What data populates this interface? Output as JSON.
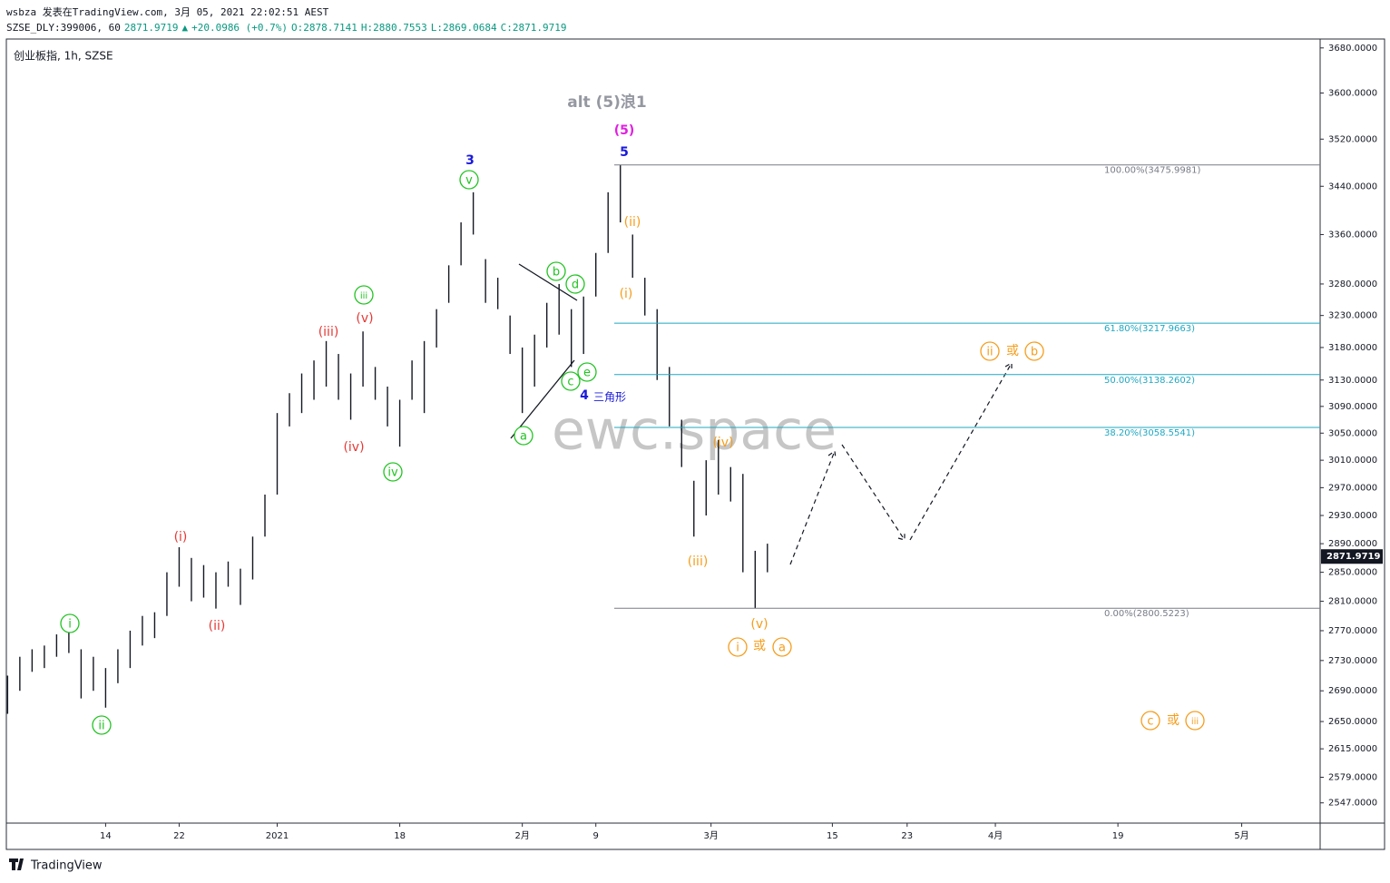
{
  "header": {
    "line1": "wsbza 发表在TradingView.com, 3月 05, 2021 22:02:51 AEST",
    "line2": [
      "SZSE_DLY:399006, 60",
      "2871.9719",
      "▲",
      "+20.0986 (+0.7%)",
      "O:2878.7141",
      "H:2880.7553",
      "L:2869.0684",
      "C:2871.9719"
    ]
  },
  "footer": {
    "brand": "TradingView"
  },
  "chart_data": {
    "type": "hilo",
    "title": "创业板指, 1h, SZSE",
    "watermark": "ewc.space",
    "color": "#131722",
    "log_scale": true,
    "x": [
      -8,
      -7,
      -6,
      -5,
      -4,
      -3,
      -2,
      -1,
      0,
      1,
      2,
      3,
      4,
      5,
      6,
      7,
      8,
      9,
      10,
      11,
      12,
      13,
      14,
      15,
      16,
      17,
      18,
      19,
      20,
      21,
      22,
      23,
      24,
      25,
      26,
      27,
      28,
      29,
      30,
      31,
      32,
      33,
      34,
      35,
      36,
      37,
      38,
      39,
      40,
      41,
      42,
      43,
      44,
      45,
      46,
      47,
      48,
      49,
      50,
      51,
      52,
      53,
      54
    ],
    "high": [
      2710,
      2735,
      2745,
      2750,
      2765,
      2768,
      2745,
      2735,
      2720,
      2745,
      2770,
      2790,
      2795,
      2850,
      2885,
      2870,
      2860,
      2850,
      2865,
      2855,
      2900,
      2960,
      3080,
      3110,
      3140,
      3160,
      3190,
      3170,
      3140,
      3205,
      3150,
      3120,
      3100,
      3160,
      3190,
      3240,
      3310,
      3380,
      3430,
      3320,
      3290,
      3230,
      3180,
      3200,
      3250,
      3280,
      3240,
      3260,
      3330,
      3430,
      3476,
      3360,
      3290,
      3240,
      3150,
      3070,
      2980,
      3010,
      3040,
      3000,
      2990,
      2880,
      2890
    ],
    "low": [
      2660,
      2690,
      2715,
      2720,
      2735,
      2740,
      2680,
      2690,
      2668,
      2700,
      2720,
      2750,
      2760,
      2790,
      2830,
      2810,
      2815,
      2800,
      2830,
      2805,
      2840,
      2900,
      2960,
      3060,
      3080,
      3100,
      3120,
      3100,
      3070,
      3120,
      3100,
      3060,
      3030,
      3100,
      3080,
      3180,
      3250,
      3310,
      3360,
      3250,
      3240,
      3170,
      3080,
      3120,
      3180,
      3200,
      3150,
      3170,
      3260,
      3330,
      3380,
      3290,
      3230,
      3130,
      3060,
      3000,
      2900,
      2930,
      2960,
      2950,
      2850,
      2800.5223,
      2850
    ],
    "last_price": 2871.9719,
    "xlim": [
      -8.1,
      99.1
    ],
    "xticks": [
      {
        "value": 0,
        "label": "14"
      },
      {
        "value": 6,
        "label": "22"
      },
      {
        "value": 14,
        "label": "2021"
      },
      {
        "value": 24,
        "label": "18"
      },
      {
        "value": 34,
        "label": "2月"
      },
      {
        "value": 40,
        "label": "9"
      },
      {
        "value": 49.4,
        "label": "3月"
      },
      {
        "value": 59.3,
        "label": "15"
      },
      {
        "value": 65.4,
        "label": "23"
      },
      {
        "value": 72.6,
        "label": "4月"
      },
      {
        "value": 82.6,
        "label": "19"
      },
      {
        "value": 92.7,
        "label": "5月"
      }
    ],
    "ylim": [
      2522,
      3696
    ],
    "yticks": [
      {
        "value": 3680,
        "label": "3680.0000"
      },
      {
        "value": 3600,
        "label": "3600.0000"
      },
      {
        "value": 3520,
        "label": "3520.0000"
      },
      {
        "value": 3440,
        "label": "3440.0000"
      },
      {
        "value": 3360,
        "label": "3360.0000"
      },
      {
        "value": 3280,
        "label": "3280.0000"
      },
      {
        "value": 3230,
        "label": "3230.0000"
      },
      {
        "value": 3180,
        "label": "3180.0000"
      },
      {
        "value": 3130,
        "label": "3130.0000"
      },
      {
        "value": 3090,
        "label": "3090.0000"
      },
      {
        "value": 3050,
        "label": "3050.0000"
      },
      {
        "value": 3010,
        "label": "3010.0000"
      },
      {
        "value": 2970,
        "label": "2970.0000"
      },
      {
        "value": 2930,
        "label": "2930.0000"
      },
      {
        "value": 2890,
        "label": "2890.0000"
      },
      {
        "value": 2850,
        "label": "2850.0000"
      },
      {
        "value": 2810,
        "label": "2810.0000"
      },
      {
        "value": 2770,
        "label": "2770.0000"
      },
      {
        "value": 2730,
        "label": "2730.0000"
      },
      {
        "value": 2690,
        "label": "2690.0000"
      },
      {
        "value": 2650,
        "label": "2650.0000"
      },
      {
        "value": 2615,
        "label": "2615.0000"
      },
      {
        "value": 2579,
        "label": "2579.0000"
      },
      {
        "value": 2547,
        "label": "2547.0000"
      }
    ],
    "fib_levels": [
      {
        "value": 3475.9981,
        "label": "100.00%(3475.9981)",
        "color": "#787b86"
      },
      {
        "value": 3217.9663,
        "label": "61.80%(3217.9663)",
        "color": "#1fa8c2"
      },
      {
        "value": 3138.2602,
        "label": "50.00%(3138.2602)",
        "color": "#1fa8c2"
      },
      {
        "value": 3058.5541,
        "label": "38.20%(3058.5541)",
        "color": "#1fa8c2"
      },
      {
        "value": 2800.5223,
        "label": "0.00%(2800.5223)",
        "color": "#787b86"
      }
    ],
    "annotations": [
      {
        "text": "(i)",
        "color": "#e53935",
        "circled": false
      },
      {
        "text": "(ii)",
        "color": "#e53935",
        "circled": false
      },
      {
        "text": "(iii)",
        "color": "#e53935",
        "circled": false
      },
      {
        "text": "(iv)",
        "color": "#e53935",
        "circled": false
      },
      {
        "text": "(v)",
        "color": "#e53935",
        "circled": false
      },
      {
        "text": "i",
        "color": "#22c322",
        "circled": true
      },
      {
        "text": "ii",
        "color": "#22c322",
        "circled": true
      },
      {
        "text": "iii",
        "color": "#22c322",
        "circled": true
      },
      {
        "text": "iv",
        "color": "#22c322",
        "circled": true
      },
      {
        "text": "v",
        "color": "#22c322",
        "circled": true
      },
      {
        "text": "a",
        "color": "#22c322",
        "circled": true
      },
      {
        "text": "b",
        "color": "#22c322",
        "circled": true
      },
      {
        "text": "c",
        "color": "#22c322",
        "circled": true
      },
      {
        "text": "d",
        "color": "#22c322",
        "circled": true
      },
      {
        "text": "e",
        "color": "#22c322",
        "circled": true
      },
      {
        "text": "3",
        "color": "#1a1adb",
        "circled": false
      },
      {
        "text": "5",
        "color": "#1a1adb",
        "circled": false
      },
      {
        "text": "4",
        "color": "#1a1adb",
        "circled": false
      },
      {
        "text": "三角形",
        "color": "#1a1adb",
        "circled": false
      },
      {
        "text": "(5)",
        "color": "#e020e0",
        "circled": false
      },
      {
        "text": "alt (5)浪1",
        "color": "#9598a1",
        "circled": false
      },
      {
        "text": "(ii)",
        "color": "#f59d1b",
        "circled": false
      },
      {
        "text": "(i)",
        "color": "#f59d1b",
        "circled": false
      },
      {
        "text": "(iv)",
        "color": "#f59d1b",
        "circled": false
      },
      {
        "text": "(iii)",
        "color": "#f59d1b",
        "circled": false
      },
      {
        "text": "(v)",
        "color": "#f59d1b",
        "circled": false
      },
      {
        "text": "i",
        "color": "#f59d1b",
        "circled": true
      },
      {
        "text": "或",
        "color": "#f59d1b",
        "circled": false
      },
      {
        "text": "a",
        "color": "#f59d1b",
        "circled": true
      },
      {
        "text": "ii",
        "color": "#f59d1b",
        "circled": true
      },
      {
        "text": "或",
        "color": "#f59d1b",
        "circled": false
      },
      {
        "text": "b",
        "color": "#f59d1b",
        "circled": true
      },
      {
        "text": "c",
        "color": "#f59d1b",
        "circled": true
      },
      {
        "text": "或",
        "color": "#f59d1b",
        "circled": false
      },
      {
        "text": "iii",
        "color": "#f59d1b",
        "circled": true
      }
    ]
  }
}
